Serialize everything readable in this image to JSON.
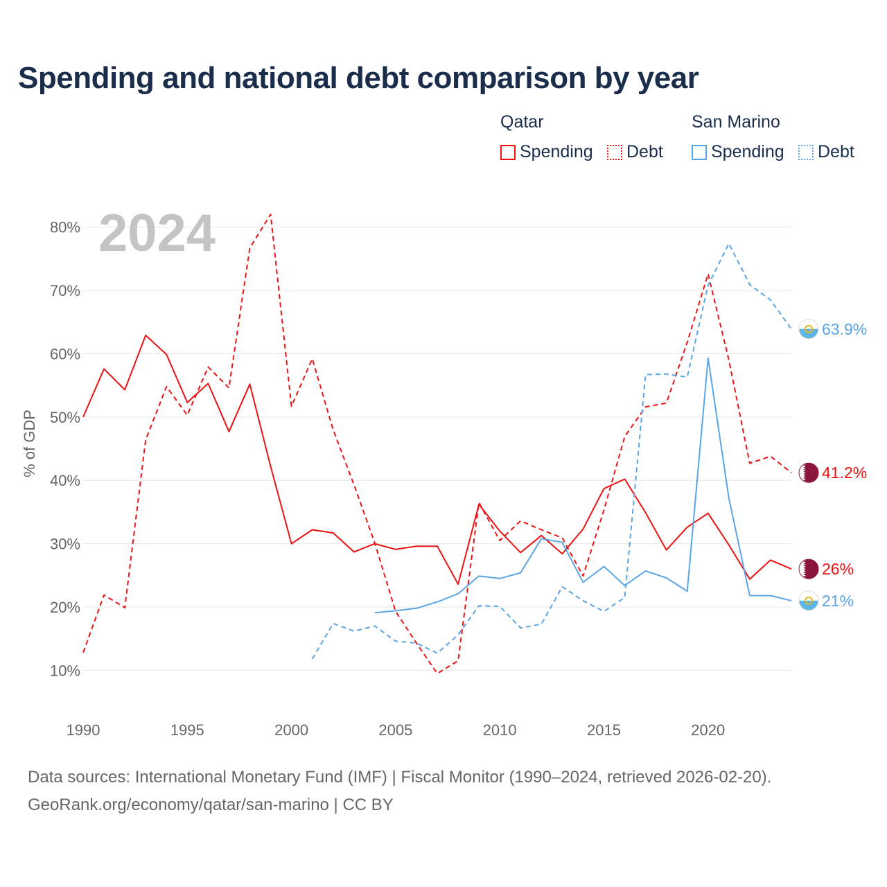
{
  "title": "Spending and national debt comparison by year",
  "legend": {
    "groups": [
      {
        "name": "Qatar",
        "color": "#ee1111",
        "items": [
          {
            "label": "Spending",
            "style": "solid"
          },
          {
            "label": "Debt",
            "style": "dotted"
          }
        ]
      },
      {
        "name": "San Marino",
        "color": "#5aa5e6",
        "items": [
          {
            "label": "Spending",
            "style": "solid"
          },
          {
            "label": "Debt",
            "style": "dotted"
          }
        ]
      }
    ]
  },
  "footer": {
    "line1": "Data sources: International Monetary Fund (IMF) | Fiscal Monitor (1990–2024, retrieved 2026-02-20).",
    "line2": "GeoRank.org/economy/qatar/san-marino | CC BY"
  },
  "chart_data": {
    "type": "line",
    "title": "Spending and national debt comparison by year",
    "ylabel": "% of GDP",
    "xlabel": "",
    "year_label": "2024",
    "xlim": [
      1990,
      2024
    ],
    "ylim": [
      5,
      85
    ],
    "y_ticks": [
      10,
      20,
      30,
      40,
      50,
      60,
      70,
      80
    ],
    "y_tick_labels": [
      "10%",
      "20%",
      "30%",
      "40%",
      "50%",
      "60%",
      "70%",
      "80%"
    ],
    "x_ticks": [
      1990,
      1995,
      2000,
      2005,
      2010,
      2015,
      2020
    ],
    "x_tick_labels": [
      "1990",
      "1995",
      "2000",
      "2005",
      "2010",
      "2015",
      "2020"
    ],
    "grid": true,
    "series": [
      {
        "name": "Qatar Spending",
        "country": "Qatar",
        "color": "#ee1111",
        "dash": false,
        "end_label": "26%",
        "flag": "qatar",
        "x": [
          1990,
          1991,
          1992,
          1993,
          1994,
          1995,
          1996,
          1997,
          1998,
          1999,
          2000,
          2001,
          2002,
          2003,
          2004,
          2005,
          2006,
          2007,
          2008,
          2009,
          2010,
          2011,
          2012,
          2013,
          2014,
          2015,
          2016,
          2017,
          2018,
          2019,
          2020,
          2021,
          2022,
          2023,
          2024
        ],
        "y": [
          50.0,
          57.6,
          54.3,
          62.9,
          59.9,
          52.3,
          55.3,
          47.7,
          55.2,
          42.2,
          30.0,
          32.2,
          31.7,
          28.7,
          30.0,
          29.1,
          29.6,
          29.6,
          23.6,
          36.2,
          32.0,
          28.6,
          31.3,
          28.4,
          32.3,
          38.7,
          40.2,
          34.9,
          29.0,
          32.6,
          34.8,
          29.8,
          24.4,
          27.4,
          26.0
        ]
      },
      {
        "name": "Qatar Debt",
        "country": "Qatar",
        "color": "#ee1111",
        "dash": true,
        "end_label": "41.2%",
        "flag": "qatar",
        "x": [
          1990,
          1991,
          1992,
          1993,
          1994,
          1995,
          1996,
          1997,
          1998,
          1999,
          2000,
          2001,
          2002,
          2003,
          2004,
          2005,
          2006,
          2007,
          2008,
          2009,
          2010,
          2011,
          2012,
          2013,
          2014,
          2015,
          2016,
          2017,
          2018,
          2019,
          2020,
          2021,
          2022,
          2023,
          2024
        ],
        "y": [
          12.8,
          21.9,
          19.9,
          46.4,
          54.8,
          50.3,
          57.9,
          54.6,
          76.7,
          82.0,
          51.7,
          59.2,
          48.0,
          39.3,
          30.1,
          19.3,
          14.3,
          9.5,
          11.5,
          36.5,
          30.5,
          33.6,
          32.2,
          30.9,
          24.9,
          35.3,
          46.9,
          51.6,
          52.2,
          61.8,
          72.6,
          59.0,
          42.7,
          43.8,
          41.2
        ]
      },
      {
        "name": "San Marino Spending",
        "country": "San Marino",
        "color": "#5aa5e6",
        "dash": false,
        "end_label": "21%",
        "flag": "san-marino",
        "x": [
          2004,
          2005,
          2006,
          2007,
          2008,
          2009,
          2010,
          2011,
          2012,
          2013,
          2014,
          2015,
          2016,
          2017,
          2018,
          2019,
          2020,
          2021,
          2022,
          2023,
          2024
        ],
        "y": [
          19.1,
          19.4,
          19.8,
          20.8,
          22.1,
          24.9,
          24.5,
          25.4,
          30.8,
          30.2,
          23.9,
          26.4,
          23.4,
          25.7,
          24.6,
          22.5,
          59.3,
          37.2,
          21.8,
          21.8,
          21.0
        ]
      },
      {
        "name": "San Marino Debt",
        "country": "San Marino",
        "color": "#5aa5e6",
        "dash": true,
        "end_label": "63.9%",
        "flag": "san-marino",
        "x": [
          2001,
          2002,
          2003,
          2004,
          2005,
          2006,
          2007,
          2008,
          2009,
          2010,
          2011,
          2012,
          2013,
          2014,
          2015,
          2016,
          2017,
          2018,
          2019,
          2020,
          2021,
          2022,
          2023,
          2024
        ],
        "y": [
          11.8,
          17.4,
          16.2,
          17.0,
          14.6,
          14.3,
          12.7,
          15.6,
          20.2,
          20.1,
          16.7,
          17.3,
          23.2,
          21.0,
          19.3,
          21.5,
          56.7,
          56.8,
          56.3,
          70.8,
          77.4,
          70.9,
          68.5,
          63.9
        ]
      }
    ]
  }
}
